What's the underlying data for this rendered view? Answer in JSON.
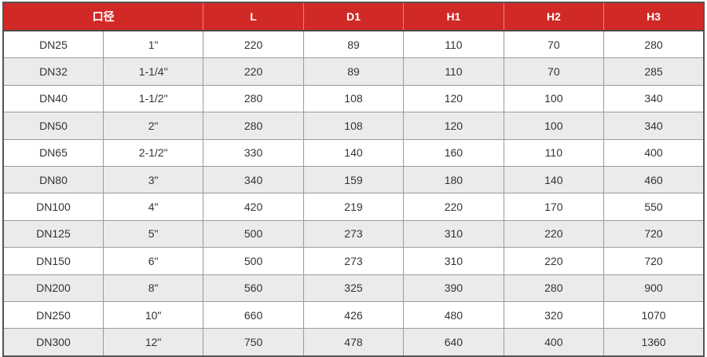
{
  "header_color": "#d12a26",
  "headers": [
    "口径",
    "L",
    "D1",
    "H1",
    "H2",
    "H3"
  ],
  "rows": [
    [
      "DN25",
      "1\"",
      "220",
      "89",
      "110",
      "70",
      "280"
    ],
    [
      "DN32",
      "1-1/4\"",
      "220",
      "89",
      "110",
      "70",
      "285"
    ],
    [
      "DN40",
      "1-1/2\"",
      "280",
      "108",
      "120",
      "100",
      "340"
    ],
    [
      "DN50",
      "2\"",
      "280",
      "108",
      "120",
      "100",
      "340"
    ],
    [
      "DN65",
      "2-1/2\"",
      "330",
      "140",
      "160",
      "110",
      "400"
    ],
    [
      "DN80",
      "3\"",
      "340",
      "159",
      "180",
      "140",
      "460"
    ],
    [
      "DN100",
      "4\"",
      "420",
      "219",
      "220",
      "170",
      "550"
    ],
    [
      "DN125",
      "5\"",
      "500",
      "273",
      "310",
      "220",
      "720"
    ],
    [
      "DN150",
      "6\"",
      "500",
      "273",
      "310",
      "220",
      "720"
    ],
    [
      "DN200",
      "8\"",
      "560",
      "325",
      "390",
      "280",
      "900"
    ],
    [
      "DN250",
      "10\"",
      "660",
      "426",
      "480",
      "320",
      "1070"
    ],
    [
      "DN300",
      "12\"",
      "750",
      "478",
      "640",
      "400",
      "1360"
    ]
  ]
}
